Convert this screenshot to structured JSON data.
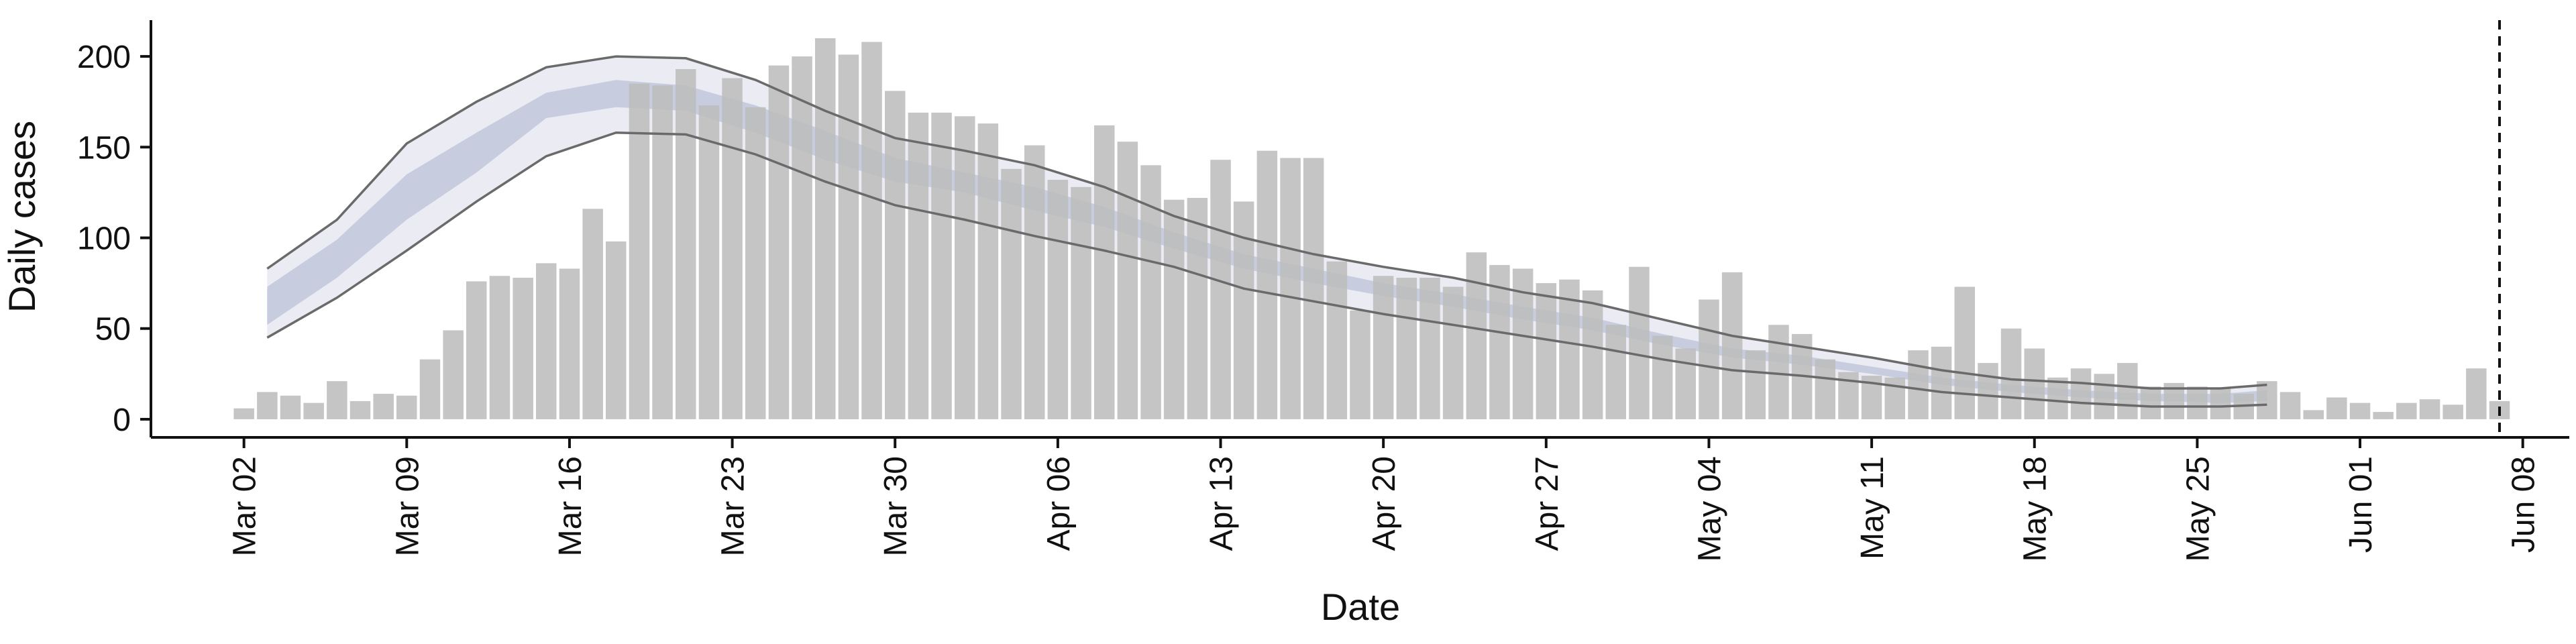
{
  "chart_data": {
    "type": "bar",
    "title": "",
    "xlabel": "Date",
    "ylabel": "Daily cases",
    "x_start": "2020-03-02",
    "xlim_dates": [
      "2020-02-27",
      "2020-06-10"
    ],
    "ylim": [
      -10,
      220
    ],
    "y_ticks": [
      0,
      50,
      100,
      150,
      200
    ],
    "x_ticks": [
      "Mar 02",
      "Mar 09",
      "Mar 16",
      "Mar 23",
      "Mar 30",
      "Apr 06",
      "Apr 13",
      "Apr 20",
      "Apr 27",
      "May 04",
      "May 11",
      "May 18",
      "May 25",
      "Jun 01",
      "Jun 08"
    ],
    "x_tick_dates": [
      "2020-03-02",
      "2020-03-09",
      "2020-03-16",
      "2020-03-23",
      "2020-03-30",
      "2020-04-06",
      "2020-04-13",
      "2020-04-20",
      "2020-04-27",
      "2020-05-04",
      "2020-05-11",
      "2020-05-18",
      "2020-05-25",
      "2020-06-01",
      "2020-06-08"
    ],
    "vline_date": "2020-06-07",
    "vline_style": "dashed",
    "grid": false,
    "legend": "none",
    "colors": {
      "bars": "#bdbdbd",
      "band_outer": "#e6e8f1",
      "band_inner": "#c3cadd",
      "bound_lines": "#6a6a6a",
      "vline": "#111111"
    },
    "series": [
      {
        "type": "bar",
        "values": [
          6,
          15,
          13,
          9,
          21,
          10,
          14,
          13,
          33,
          49,
          76,
          79,
          78,
          86,
          83,
          116,
          98,
          185,
          184,
          193,
          173,
          188,
          172,
          195,
          200,
          210,
          201,
          208,
          181,
          169,
          169,
          167,
          163,
          138,
          151,
          132,
          128,
          162,
          153,
          140,
          121,
          122,
          143,
          120,
          148,
          144,
          144,
          87,
          60,
          79,
          78,
          78,
          73,
          92,
          85,
          83,
          75,
          77,
          71,
          52,
          84,
          46,
          39,
          66,
          81,
          38,
          52,
          47,
          33,
          26,
          24,
          23,
          38,
          40,
          73,
          31,
          50,
          39,
          23,
          28,
          25,
          31,
          18,
          20,
          18,
          17,
          14,
          21,
          15,
          5,
          12,
          9,
          4,
          9,
          11,
          8,
          28,
          10
        ]
      },
      {
        "type": "band",
        "x": [
          "2020-03-03",
          "2020-03-06",
          "2020-03-09",
          "2020-03-12",
          "2020-03-15",
          "2020-03-18",
          "2020-03-21",
          "2020-03-24",
          "2020-03-27",
          "2020-03-30",
          "2020-04-02",
          "2020-04-05",
          "2020-04-08",
          "2020-04-11",
          "2020-04-14",
          "2020-04-17",
          "2020-04-20",
          "2020-04-23",
          "2020-04-26",
          "2020-04-29",
          "2020-05-02",
          "2020-05-05",
          "2020-05-08",
          "2020-05-11",
          "2020-05-14",
          "2020-05-17",
          "2020-05-20",
          "2020-05-23",
          "2020-05-26",
          "2020-05-28"
        ],
        "lower": [
          45,
          67,
          93,
          120,
          145,
          158,
          157,
          146,
          131,
          118,
          110,
          101,
          93,
          84,
          72,
          65,
          58,
          52,
          46,
          40,
          33,
          27,
          24,
          20,
          15,
          12,
          9,
          7,
          7,
          8
        ],
        "upper": [
          83,
          110,
          152,
          175,
          194,
          200,
          199,
          187,
          170,
          155,
          148,
          140,
          128,
          112,
          100,
          91,
          84,
          78,
          70,
          64,
          55,
          46,
          40,
          34,
          27,
          22,
          20,
          17,
          17,
          19
        ],
        "inner_lower": [
          52,
          78,
          110,
          136,
          166,
          172,
          170,
          158,
          143,
          131,
          125,
          115,
          106,
          94,
          83,
          75,
          68,
          62,
          55,
          49,
          41,
          34,
          30,
          25,
          19,
          15,
          12,
          10,
          9,
          10
        ],
        "inner_upper": [
          73,
          99,
          135,
          158,
          180,
          187,
          184,
          173,
          159,
          144,
          136,
          128,
          117,
          103,
          91,
          83,
          75,
          69,
          62,
          56,
          47,
          39,
          35,
          29,
          23,
          19,
          16,
          14,
          14,
          16
        ]
      }
    ]
  }
}
